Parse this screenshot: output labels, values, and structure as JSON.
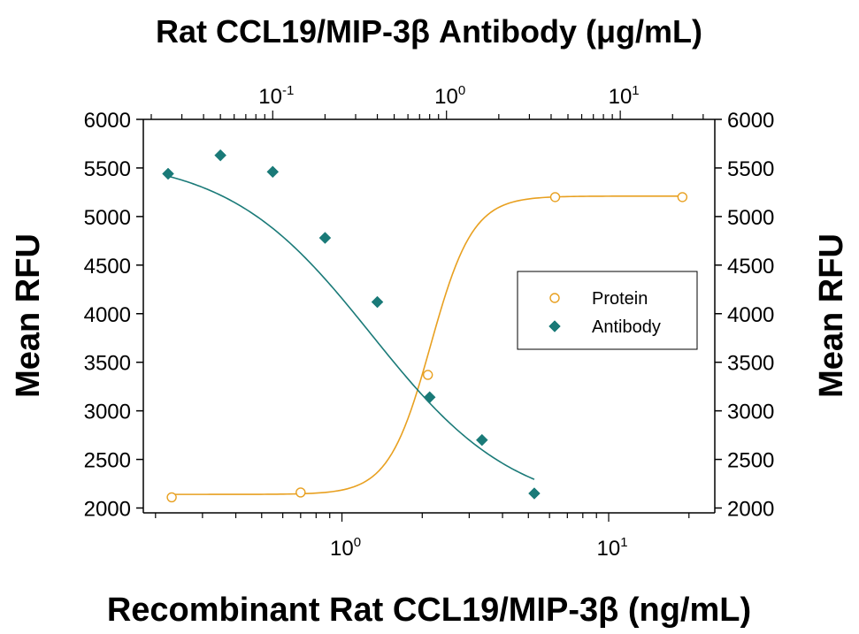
{
  "chart_data": {
    "type": "scatter",
    "title": "Rat CCL19/MIP-3β Antibody (μg/mL)",
    "xlabel": "Recombinant Rat CCL19/MIP-3β (ng/mL)",
    "ylabel_left": "Mean RFU",
    "ylabel_right": "Mean RFU",
    "x_scale": "log",
    "x_top_scale": "log",
    "xlim": [
      0.18,
      25
    ],
    "x_top_lim": [
      0.018,
      35
    ],
    "ylim": [
      1950,
      6000
    ],
    "y_ticks": [
      2000,
      2500,
      3000,
      3500,
      4000,
      4500,
      5000,
      5500,
      6000
    ],
    "x_ticks": [
      {
        "base": "10",
        "exp": "0",
        "value": 1
      },
      {
        "base": "10",
        "exp": "1",
        "value": 10
      }
    ],
    "x_top_ticks": [
      {
        "base": "10",
        "exp": "-1",
        "value": 0.1
      },
      {
        "base": "10",
        "exp": "0",
        "value": 1
      },
      {
        "base": "10",
        "exp": "1",
        "value": 10
      }
    ],
    "grid": false,
    "legend_position": "center-right",
    "series": [
      {
        "name": "Protein",
        "axis": "bottom",
        "marker": "open-circle",
        "color": "#e8a020",
        "x": [
          0.23,
          0.7,
          2.1,
          6.3,
          18.9
        ],
        "y": [
          2110,
          2160,
          3370,
          5200,
          5200
        ],
        "fit": {
          "bottom": 2140,
          "top": 5210,
          "ec50": 2.15,
          "hill": 5.5
        }
      },
      {
        "name": "Antibody",
        "axis": "top",
        "marker": "filled-diamond",
        "color": "#1a7a78",
        "x": [
          0.025,
          0.05,
          0.1,
          0.2,
          0.4,
          0.8,
          1.6,
          3.2
        ],
        "y": [
          5440,
          5630,
          5460,
          4780,
          4120,
          3140,
          2700,
          2150
        ],
        "fit": {
          "top": 5620,
          "bottom": 1950,
          "ic50": 0.37,
          "hill": 1.05
        }
      }
    ]
  }
}
